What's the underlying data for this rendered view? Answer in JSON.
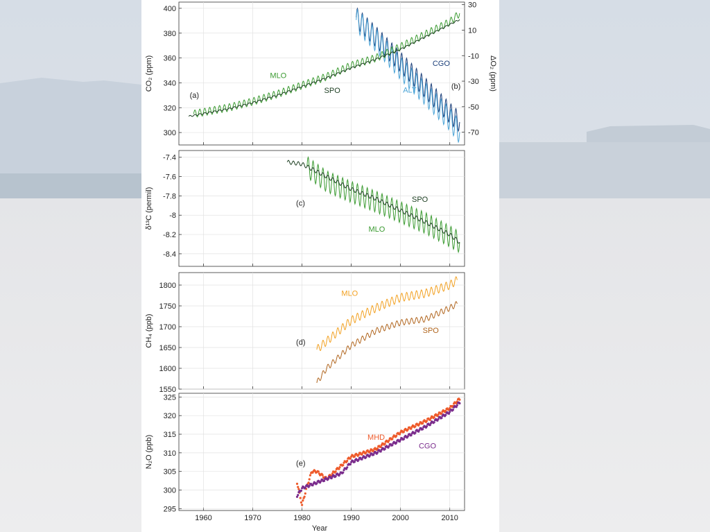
{
  "figure": {
    "xlabel": "Year",
    "xlim": [
      1955,
      2013
    ],
    "xticks": [
      1960,
      1970,
      1980,
      1990,
      2000,
      2010
    ]
  },
  "colors": {
    "mlo_green": "#3a9a30",
    "spo_dark": "#1b3d20",
    "cgo_navy": "#1c3f7a",
    "alt_light": "#4aa3d6",
    "ch4_mlo": "#f2a020",
    "ch4_spo": "#b0641c",
    "mhd": "#ee5a2a",
    "cgo_purple": "#7a2c8c"
  },
  "chart_data": [
    {
      "type": "line",
      "panel": "(a)",
      "ylabel": "CO₂ (ppm)",
      "ylim": [
        290,
        405
      ],
      "yticks": [
        300,
        320,
        340,
        360,
        380,
        400
      ],
      "series": [
        {
          "name": "MLO",
          "axis": "left",
          "color": "mlo_green",
          "seasonal_amplitude": 3,
          "x": [
            1958,
            1965,
            1970,
            1975,
            1980,
            1985,
            1990,
            1995,
            2000,
            2005,
            2010,
            2012
          ],
          "y": [
            315,
            320,
            325,
            331,
            338,
            345,
            354,
            360,
            369,
            379,
            389,
            396
          ]
        },
        {
          "name": "SPO",
          "axis": "left",
          "color": "spo_dark",
          "seasonal_amplitude": 0.6,
          "x": [
            1957,
            1965,
            1970,
            1975,
            1980,
            1985,
            1990,
            1995,
            2000,
            2005,
            2010,
            2012
          ],
          "y": [
            313,
            319,
            324,
            330,
            337,
            344,
            352,
            359,
            367,
            377,
            387,
            391
          ]
        }
      ],
      "annotations": [
        {
          "text": "MLO",
          "x": 1973.5,
          "y": 344,
          "color": "mlo_green"
        },
        {
          "text": "SPO",
          "x": 1984.5,
          "y": 332,
          "color": "spo_dark"
        },
        {
          "text": "(a)",
          "x": 1957.2,
          "y": 328,
          "color": "#222222"
        }
      ]
    },
    {
      "type": "line",
      "panel": "(b)",
      "ylabel": "ΔO₂ (ppm)",
      "ylim": [
        -80,
        32
      ],
      "yticks": [
        -70,
        -50,
        -30,
        -10,
        10,
        30
      ],
      "series": [
        {
          "name": "CGO",
          "axis": "right",
          "color": "cgo_navy",
          "seasonal_amplitude": 8,
          "x": [
            1991,
            1995,
            2000,
            2005,
            2010,
            2012
          ],
          "y": [
            20,
            5,
            -15,
            -35,
            -55,
            -62
          ]
        },
        {
          "name": "ALT",
          "axis": "right",
          "color": "alt_light",
          "seasonal_amplitude": 9,
          "x": [
            1991,
            1995,
            2000,
            2005,
            2010,
            2012
          ],
          "y": [
            18,
            2,
            -20,
            -40,
            -60,
            -70
          ]
        }
      ],
      "annotations": [
        {
          "text": "CGO",
          "x": 2006.5,
          "y": -18,
          "color": "cgo_navy"
        },
        {
          "text": "ALT",
          "x": 2000.5,
          "y": -39,
          "color": "alt_light"
        },
        {
          "text": "(b)",
          "x": 2010.3,
          "y": -36,
          "color": "#222222"
        }
      ]
    },
    {
      "type": "line",
      "panel": "(c)",
      "ylabel": "δ¹³C (permil)",
      "ylim": [
        -8.53,
        -7.33
      ],
      "yticks": [
        -8.4,
        -8.2,
        -8.0,
        -7.8,
        -7.6,
        -7.4
      ],
      "series": [
        {
          "name": "MLO",
          "color": "mlo_green",
          "seasonal_amplitude": 0.11,
          "x": [
            1981,
            1985,
            1990,
            1995,
            2000,
            2005,
            2010,
            2012
          ],
          "y": [
            -7.5,
            -7.65,
            -7.76,
            -7.86,
            -7.97,
            -8.08,
            -8.22,
            -8.28
          ]
        },
        {
          "name": "SPO",
          "color": "spo_dark",
          "seasonal_amplitude": 0.02,
          "x": [
            1977,
            1980,
            1985,
            1990,
            1995,
            2000,
            2005,
            2010,
            2012
          ],
          "y": [
            -7.45,
            -7.47,
            -7.6,
            -7.73,
            -7.83,
            -7.95,
            -8.07,
            -8.2,
            -8.28
          ]
        }
      ],
      "annotations": [
        {
          "text": "SPO",
          "x": 2002.3,
          "y": -7.86,
          "color": "spo_dark"
        },
        {
          "text": "MLO",
          "x": 1993.5,
          "y": -8.17,
          "color": "mlo_green"
        },
        {
          "text": "(c)",
          "x": 1978.8,
          "y": -7.9,
          "color": "#222222"
        }
      ]
    },
    {
      "type": "line",
      "panel": "(d)",
      "ylabel": "CH₄ (ppb)",
      "ylim": [
        1550,
        1830
      ],
      "yticks": [
        1550,
        1600,
        1650,
        1700,
        1750,
        1800
      ],
      "series": [
        {
          "name": "MLO",
          "color": "ch4_mlo",
          "seasonal_amplitude": 10,
          "x": [
            1983,
            1985,
            1990,
            1995,
            2000,
            2005,
            2010,
            2011.5
          ],
          "y": [
            1645,
            1665,
            1715,
            1745,
            1770,
            1780,
            1800,
            1812
          ]
        },
        {
          "name": "SPO",
          "color": "ch4_spo",
          "seasonal_amplitude": 7,
          "x": [
            1983,
            1985,
            1990,
            1995,
            2000,
            2005,
            2010,
            2011.5
          ],
          "y": [
            1565,
            1600,
            1655,
            1690,
            1710,
            1718,
            1745,
            1755
          ]
        }
      ],
      "annotations": [
        {
          "text": "MLO",
          "x": 1988,
          "y": 1774,
          "color": "ch4_mlo"
        },
        {
          "text": "SPO",
          "x": 2004.5,
          "y": 1685,
          "color": "ch4_spo"
        },
        {
          "text": "(d)",
          "x": 1978.8,
          "y": 1657,
          "color": "#222222"
        }
      ]
    },
    {
      "type": "scatter",
      "panel": "(e)",
      "ylabel": "N₂O (ppb)",
      "ylim": [
        294.5,
        326
      ],
      "yticks": [
        295,
        300,
        305,
        310,
        315,
        320,
        325
      ],
      "series": [
        {
          "name": "MHD",
          "color": "mhd",
          "x": [
            1979,
            1980,
            1981,
            1982,
            1983,
            1985,
            1990,
            1995,
            2000,
            2005,
            2010,
            2012
          ],
          "y": [
            302,
            296,
            301,
            305,
            305,
            303,
            309,
            311,
            315.5,
            318.5,
            322,
            324.5
          ]
        },
        {
          "name": "CGO",
          "color": "cgo_purple",
          "x": [
            1979,
            1980,
            1982,
            1985,
            1988,
            1990,
            1995,
            2000,
            2005,
            2010,
            2012
          ],
          "y": [
            298.5,
            300.5,
            301.5,
            303,
            304.5,
            307.5,
            310,
            313.5,
            317,
            321,
            323.5
          ]
        }
      ],
      "annotations": [
        {
          "text": "MHD",
          "x": 1993.3,
          "y": 313.5,
          "color": "mhd"
        },
        {
          "text": "CGO",
          "x": 2003.7,
          "y": 311.2,
          "color": "cgo_purple"
        },
        {
          "text": "(e)",
          "x": 1978.8,
          "y": 306.5,
          "color": "#222222"
        }
      ]
    }
  ]
}
